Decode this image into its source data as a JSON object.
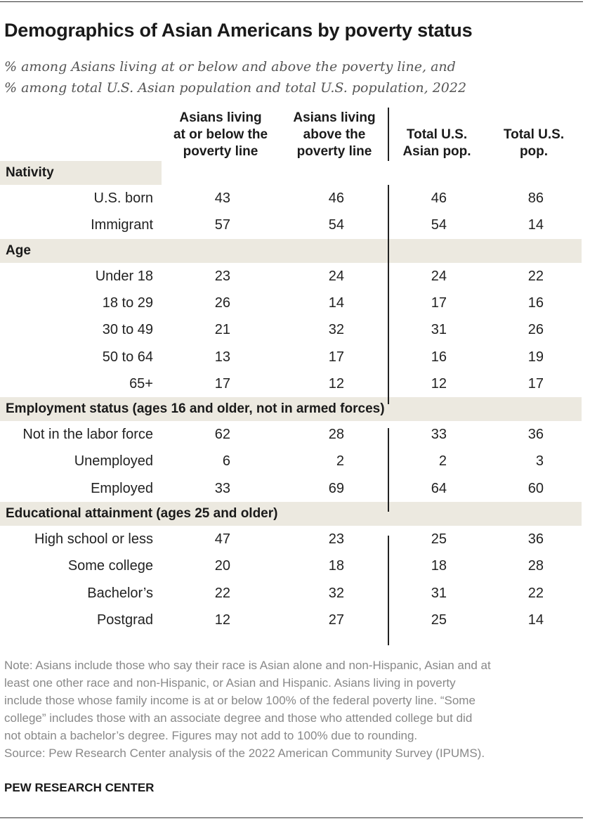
{
  "title": "Demographics of Asian Americans by poverty status",
  "subtitle_lines": [
    "% among Asians living at or below and above the poverty line, and",
    "% among total U.S. Asian population and total U.S. population, 2022"
  ],
  "chart_data": {
    "type": "table",
    "columns": [
      [
        "Asians living",
        "at or below the",
        "poverty line"
      ],
      [
        "Asians living",
        "above the",
        "poverty line"
      ],
      [
        "Total U.S.",
        "Asian pop."
      ],
      [
        "Total U.S.",
        "pop."
      ]
    ],
    "sections": [
      {
        "label": "Nativity",
        "rows": [
          {
            "label": "U.S. born",
            "values": [
              "43",
              "46",
              "46",
              "86"
            ]
          },
          {
            "label": "Immigrant",
            "values": [
              "57",
              "54",
              "54",
              "14"
            ]
          }
        ]
      },
      {
        "label": "Age",
        "rows": [
          {
            "label": "Under 18",
            "values": [
              "23",
              "24",
              "24",
              "22"
            ]
          },
          {
            "label": "18 to 29",
            "values": [
              "26",
              "14",
              "17",
              "16"
            ]
          },
          {
            "label": "30 to 49",
            "values": [
              "21",
              "32",
              "31",
              "26"
            ]
          },
          {
            "label": "50 to 64",
            "values": [
              "13",
              "17",
              "16",
              "19"
            ]
          },
          {
            "label": "65+",
            "values": [
              "17",
              "12",
              "12",
              "17"
            ]
          }
        ]
      },
      {
        "label": "Employment status (ages 16 and older, not in armed forces)",
        "rows": [
          {
            "label": "Not in the labor force",
            "values": [
              "62",
              "28",
              "33",
              "36"
            ]
          },
          {
            "label": "Unemployed",
            "values": [
              "6",
              "2",
              "2",
              "3"
            ]
          },
          {
            "label": "Employed",
            "values": [
              "33",
              "69",
              "64",
              "60"
            ]
          }
        ]
      },
      {
        "label": "Educational attainment (ages 25 and older)",
        "rows": [
          {
            "label": "High school or less",
            "values": [
              "47",
              "23",
              "25",
              "36"
            ]
          },
          {
            "label": "Some college",
            "values": [
              "20",
              "18",
              "18",
              "28"
            ]
          },
          {
            "label": "Bachelor’s",
            "values": [
              "22",
              "32",
              "31",
              "22"
            ]
          },
          {
            "label": "Postgrad",
            "values": [
              "12",
              "27",
              "25",
              "14"
            ]
          }
        ]
      }
    ]
  },
  "note_lines": [
    "Note: Asians include those who say their race is Asian alone and non-Hispanic, Asian and at",
    "least one other race and non-Hispanic, or Asian and Hispanic. Asians living in poverty",
    "include those whose family income is at or below 100% of the federal poverty line. “Some",
    "college” includes those with an associate degree and those who attended college but did",
    "not obtain a bachelor’s degree. Figures may not add to 100% due to rounding.",
    "Source: Pew Research Center analysis of the 2022 American Community Survey (IPUMS)."
  ],
  "brand": "PEW RESEARCH CENTER"
}
